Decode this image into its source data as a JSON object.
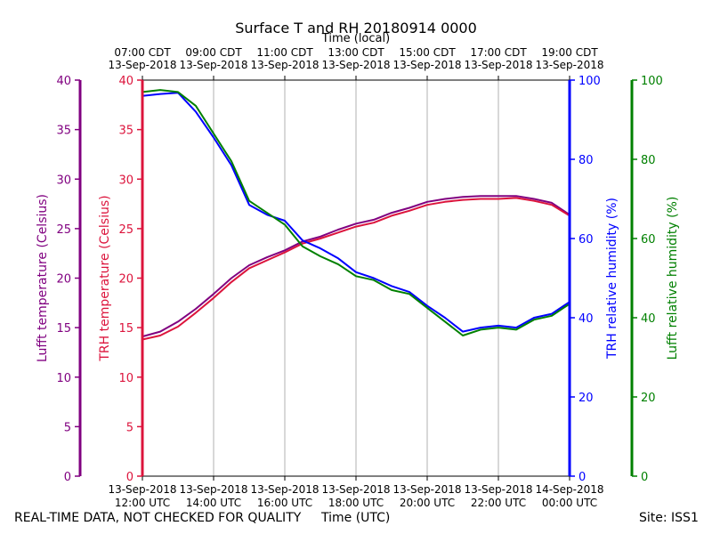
{
  "chart_data": {
    "type": "line",
    "title": "Surface T and RH 20180914 0000",
    "top_axis_label": "Time (local)",
    "xlabel": "Time (UTC)",
    "x_range": [
      "13-Sep-2018 12:00 UTC",
      "14-Sep-2018 00:00 UTC"
    ],
    "x_ticks_utc": [
      {
        "line1": "13-Sep-2018",
        "line2": "12:00 UTC"
      },
      {
        "line1": "13-Sep-2018",
        "line2": "14:00 UTC"
      },
      {
        "line1": "13-Sep-2018",
        "line2": "16:00 UTC"
      },
      {
        "line1": "13-Sep-2018",
        "line2": "18:00 UTC"
      },
      {
        "line1": "13-Sep-2018",
        "line2": "20:00 UTC"
      },
      {
        "line1": "13-Sep-2018",
        "line2": "22:00 UTC"
      },
      {
        "line1": "14-Sep-2018",
        "line2": "00:00 UTC"
      }
    ],
    "x_ticks_local": [
      {
        "line1": "07:00 CDT",
        "line2": "13-Sep-2018"
      },
      {
        "line1": "09:00 CDT",
        "line2": "13-Sep-2018"
      },
      {
        "line1": "11:00 CDT",
        "line2": "13-Sep-2018"
      },
      {
        "line1": "13:00 CDT",
        "line2": "13-Sep-2018"
      },
      {
        "line1": "15:00 CDT",
        "line2": "13-Sep-2018"
      },
      {
        "line1": "17:00 CDT",
        "line2": "13-Sep-2018"
      },
      {
        "line1": "19:00 CDT",
        "line2": "13-Sep-2018"
      }
    ],
    "hours_utc": [
      12,
      12.5,
      13,
      13.5,
      14,
      14.5,
      15,
      15.5,
      16,
      16.5,
      17,
      17.5,
      18,
      18.5,
      19,
      19.5,
      20,
      20.5,
      21,
      21.5,
      22,
      22.5,
      23,
      23.5,
      24
    ],
    "axes": {
      "lufft_temp": {
        "label": "Lufft temperature (Celsius)",
        "ylim": [
          0,
          40
        ],
        "ticks": [
          0,
          5,
          10,
          15,
          20,
          25,
          30,
          35,
          40
        ],
        "color": "#800080"
      },
      "trh_temp": {
        "label": "TRH temperature (Celsius)",
        "ylim": [
          0,
          40
        ],
        "ticks": [
          0,
          5,
          10,
          15,
          20,
          25,
          30,
          35,
          40
        ],
        "color": "#dc143c"
      },
      "trh_rh": {
        "label": "TRH relative humidity (%)",
        "ylim": [
          0,
          100
        ],
        "ticks": [
          0,
          20,
          40,
          60,
          80,
          100
        ],
        "color": "#0000ff"
      },
      "lufft_rh": {
        "label": "Lufft relative humidity (%)",
        "ylim": [
          0,
          100
        ],
        "ticks": [
          0,
          20,
          40,
          60,
          80,
          100
        ],
        "color": "#008000"
      }
    },
    "series": [
      {
        "axis": "lufft_temp",
        "color": "#800080",
        "values": [
          14.1,
          14.6,
          15.6,
          16.9,
          18.4,
          20.0,
          21.3,
          22.1,
          22.8,
          23.7,
          24.2,
          24.9,
          25.5,
          25.9,
          26.6,
          27.1,
          27.7,
          28.0,
          28.2,
          28.3,
          28.3,
          28.3,
          28.0,
          27.6,
          26.4
        ]
      },
      {
        "axis": "trh_temp",
        "color": "#dc143c",
        "values": [
          13.8,
          14.2,
          15.1,
          16.5,
          18.0,
          19.6,
          21.0,
          21.8,
          22.6,
          23.5,
          24.0,
          24.6,
          25.2,
          25.6,
          26.3,
          26.8,
          27.4,
          27.7,
          27.9,
          28.0,
          28.0,
          28.1,
          27.8,
          27.4,
          26.3
        ]
      },
      {
        "axis": "trh_rh",
        "color": "#0000ff",
        "values": [
          96.0,
          96.5,
          96.8,
          92.0,
          85.5,
          78.5,
          68.5,
          66.0,
          64.5,
          59.5,
          57.5,
          55.0,
          51.5,
          50.0,
          48.0,
          46.5,
          43.0,
          40.0,
          36.5,
          37.5,
          38.0,
          37.5,
          40.0,
          41.0,
          44.0
        ]
      },
      {
        "axis": "lufft_rh",
        "color": "#008000",
        "values": [
          97.0,
          97.5,
          97.0,
          93.5,
          86.5,
          79.5,
          69.5,
          66.5,
          63.5,
          58.0,
          55.5,
          53.5,
          50.5,
          49.5,
          47.0,
          46.0,
          42.5,
          39.0,
          35.5,
          37.0,
          37.5,
          37.0,
          39.5,
          40.5,
          43.5
        ]
      }
    ],
    "grid": "vertical"
  },
  "footer": {
    "disclaimer": "REAL-TIME DATA, NOT CHECKED FOR QUALITY",
    "xlabel": "Time (UTC)",
    "site": "Site: ISS1"
  }
}
